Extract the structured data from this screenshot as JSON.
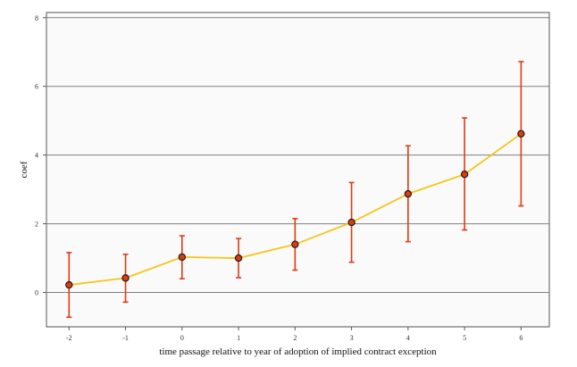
{
  "chart_data": {
    "type": "line",
    "title": "",
    "xlabel": "time passage relative to year of adoption of implied contract exception",
    "ylabel": "coef",
    "x": [
      -2,
      -1,
      0,
      1,
      2,
      3,
      4,
      5,
      6
    ],
    "x_tick_labels": [
      "-2",
      "-1",
      "0",
      "1",
      "2",
      "3",
      "4",
      "5",
      "6"
    ],
    "y_ticks": [
      0,
      2,
      4,
      6,
      8
    ],
    "y_tick_labels": [
      "0",
      "2",
      "4",
      "6",
      "8"
    ],
    "xlim": [
      -2.4,
      6.5
    ],
    "ylim": [
      -1.0,
      8.15
    ],
    "grid": "horizontal",
    "legend": "none",
    "series": [
      {
        "values": [
          0.22,
          0.42,
          1.03,
          1.0,
          1.4,
          2.04,
          2.87,
          3.44,
          4.62
        ],
        "ci_lower": [
          -0.72,
          -0.28,
          0.4,
          0.43,
          0.65,
          0.88,
          1.48,
          1.82,
          2.52
        ],
        "ci_upper": [
          1.16,
          1.11,
          1.65,
          1.57,
          2.15,
          3.2,
          4.27,
          5.08,
          6.72
        ]
      }
    ],
    "colors": {
      "line": "#F5C518",
      "error_bar": "#E03A12",
      "marker_fill": "#E03A12",
      "marker_edge": "#1a1a1a",
      "panel": "#FAFAFA",
      "gridline": "#808080",
      "frame": "#555555"
    }
  }
}
